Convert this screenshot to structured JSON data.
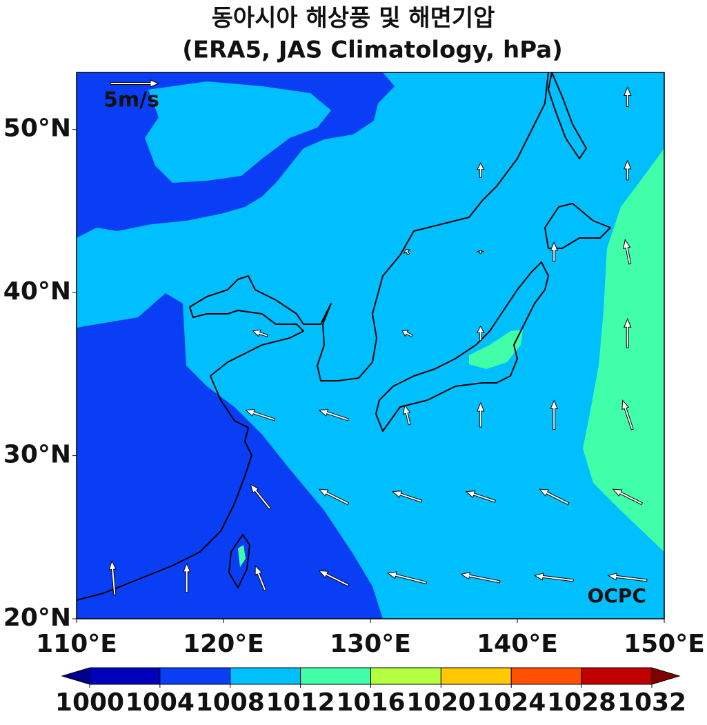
{
  "title": "동아시아 해상풍 및 해면기압",
  "subtitle": "(ERA5, JAS Climatology, hPa)",
  "map": {
    "xlim": [
      110,
      150
    ],
    "ylim": [
      20,
      53.5
    ],
    "xticks": [
      {
        "value": 110,
        "label": "110°E"
      },
      {
        "value": 120,
        "label": "120°E"
      },
      {
        "value": 130,
        "label": "130°E"
      },
      {
        "value": 140,
        "label": "140°E"
      },
      {
        "value": 150,
        "label": "150°E"
      }
    ],
    "yticks": [
      {
        "value": 20,
        "label": "20°N"
      },
      {
        "value": 30,
        "label": "30°N"
      },
      {
        "value": 40,
        "label": "40°N"
      },
      {
        "value": 50,
        "label": "50°N"
      }
    ]
  },
  "wind": {
    "reference": {
      "value": 5,
      "label": "5m/s"
    },
    "lons": [
      112.5,
      117.5,
      122.5,
      127.5,
      132.5,
      137.5,
      142.5,
      147.5
    ],
    "lats": [
      22.5,
      27.5,
      32.5,
      37.5,
      42.5,
      47.5,
      52
    ],
    "u": [
      [
        -0.3,
        0,
        -1,
        -3,
        -4,
        -4,
        -4,
        -4
      ],
      [
        null,
        null,
        -2,
        -3,
        -3,
        -3,
        -3,
        -3
      ],
      [
        null,
        null,
        -3,
        -3,
        -0.5,
        0,
        0,
        -1
      ],
      [
        null,
        null,
        -1.5,
        null,
        -1,
        0,
        null,
        0
      ],
      [
        null,
        null,
        null,
        null,
        -0.3,
        0,
        0,
        -0.5
      ],
      [
        null,
        null,
        null,
        null,
        null,
        0,
        null,
        0
      ],
      [
        null,
        null,
        null,
        null,
        null,
        null,
        null,
        0
      ]
    ],
    "v": [
      [
        3.5,
        3,
        2.5,
        1.5,
        1,
        0.8,
        0.5,
        0.5
      ],
      [
        null,
        null,
        2.5,
        1.5,
        1,
        1,
        1.5,
        1.5
      ],
      [
        null,
        null,
        1,
        1,
        2,
        2.5,
        3,
        3
      ],
      [
        null,
        null,
        0.5,
        null,
        0.5,
        1.5,
        null,
        3
      ],
      [
        null,
        null,
        null,
        null,
        0.5,
        0.3,
        2,
        2.5
      ],
      [
        null,
        null,
        null,
        null,
        null,
        1.5,
        null,
        2
      ],
      [
        null,
        null,
        null,
        null,
        null,
        null,
        null,
        2
      ]
    ]
  },
  "colorbar": {
    "levels": [
      1000,
      1004,
      1008,
      1012,
      1016,
      1020,
      1024,
      1028,
      1032
    ],
    "colors": [
      "#0000bb",
      "#0a3ef5",
      "#00bfff",
      "#40ffa8",
      "#b4ff40",
      "#ffc800",
      "#ff5000",
      "#c00000"
    ],
    "extend_colors": [
      "#00008f",
      "#800000"
    ]
  },
  "credit": "OCPC"
}
